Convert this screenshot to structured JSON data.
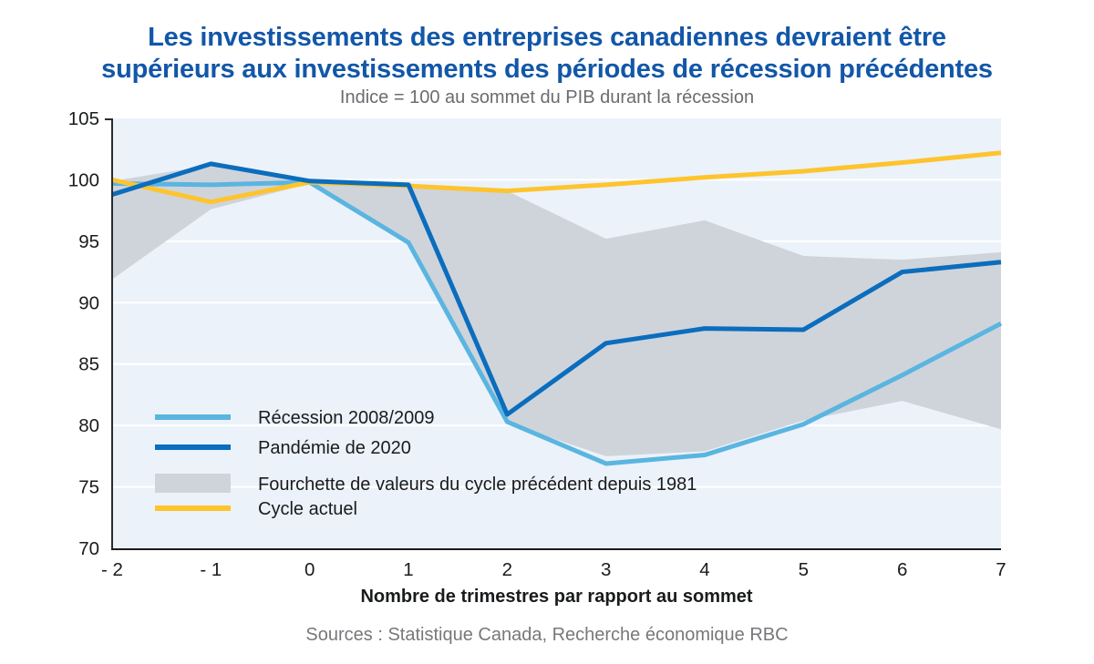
{
  "chart": {
    "title_lines": [
      "Les investissements des entreprises canadiennes devraient être",
      "supérieurs aux investissements des périodes de récession précédentes"
    ],
    "subtitle": "Indice = 100 au sommet du PIB durant la récession",
    "xlabel": "Nombre de trimestres par rapport au sommet",
    "source": "Sources : Statistique Canada, Recherche économique RBC"
  },
  "chart_data": {
    "type": "line",
    "title": "Les investissements des entreprises canadiennes devraient être supérieurs aux investissements des périodes de récession précédentes",
    "subtitle": "Indice = 100 au sommet du PIB durant la récession",
    "xlabel": "Nombre de trimestres par rapport au sommet",
    "ylabel": "",
    "source": "Sources : Statistique Canada, Recherche économique RBC",
    "x": [
      -2,
      -1,
      0,
      1,
      2,
      3,
      4,
      5,
      6,
      7
    ],
    "x_tick_labels": [
      "- 2",
      "- 1",
      "0",
      "1",
      "2",
      "3",
      "4",
      "5",
      "6",
      "7"
    ],
    "xlim": [
      -2,
      7
    ],
    "ylim": [
      70,
      105
    ],
    "yticks": [
      70,
      75,
      80,
      85,
      90,
      95,
      100,
      105
    ],
    "grid": "horizontal",
    "legend_position": "inside-bottom-left",
    "series": [
      {
        "key": "recession-2008-2009",
        "name": "Récession 2008/2009",
        "type": "line",
        "color": "#5ab5e0",
        "values": [
          99.7,
          99.6,
          99.8,
          94.9,
          80.3,
          76.9,
          77.6,
          80.1,
          84.1,
          88.3
        ]
      },
      {
        "key": "pandemie-2020",
        "name": "Pandémie de 2020",
        "type": "line",
        "color": "#0b6dbd",
        "values": [
          98.8,
          101.3,
          99.9,
          99.6,
          80.9,
          86.7,
          87.9,
          87.8,
          92.5,
          93.3
        ]
      },
      {
        "key": "fourchette-cycle-precedent-1981",
        "name": "Fourchette de valeurs du cycle précédent depuis 1981",
        "type": "band",
        "color": "#cfd4db",
        "upper": [
          99.9,
          101.2,
          100.0,
          99.7,
          99.1,
          95.2,
          96.7,
          93.8,
          93.5,
          94.1
        ],
        "lower": [
          91.9,
          97.6,
          99.7,
          94.9,
          80.2,
          77.5,
          77.9,
          80.4,
          82.0,
          79.7
        ]
      },
      {
        "key": "cycle-actuel",
        "name": "Cycle actuel",
        "type": "line",
        "color": "#fdc42e",
        "values": [
          100.0,
          98.2,
          99.8,
          99.5,
          99.1,
          99.6,
          100.2,
          100.7,
          101.4,
          102.2
        ]
      }
    ],
    "colors": {
      "title": "#1257a8",
      "subtitle": "#6b6c70",
      "source": "#77787b",
      "axis_text": "#191b1d",
      "plot_bg": "#ebf2fa",
      "gridline": "#ffffff",
      "y_axis_line": "#2a2d30",
      "x_axis_line": "#191b1d"
    }
  }
}
